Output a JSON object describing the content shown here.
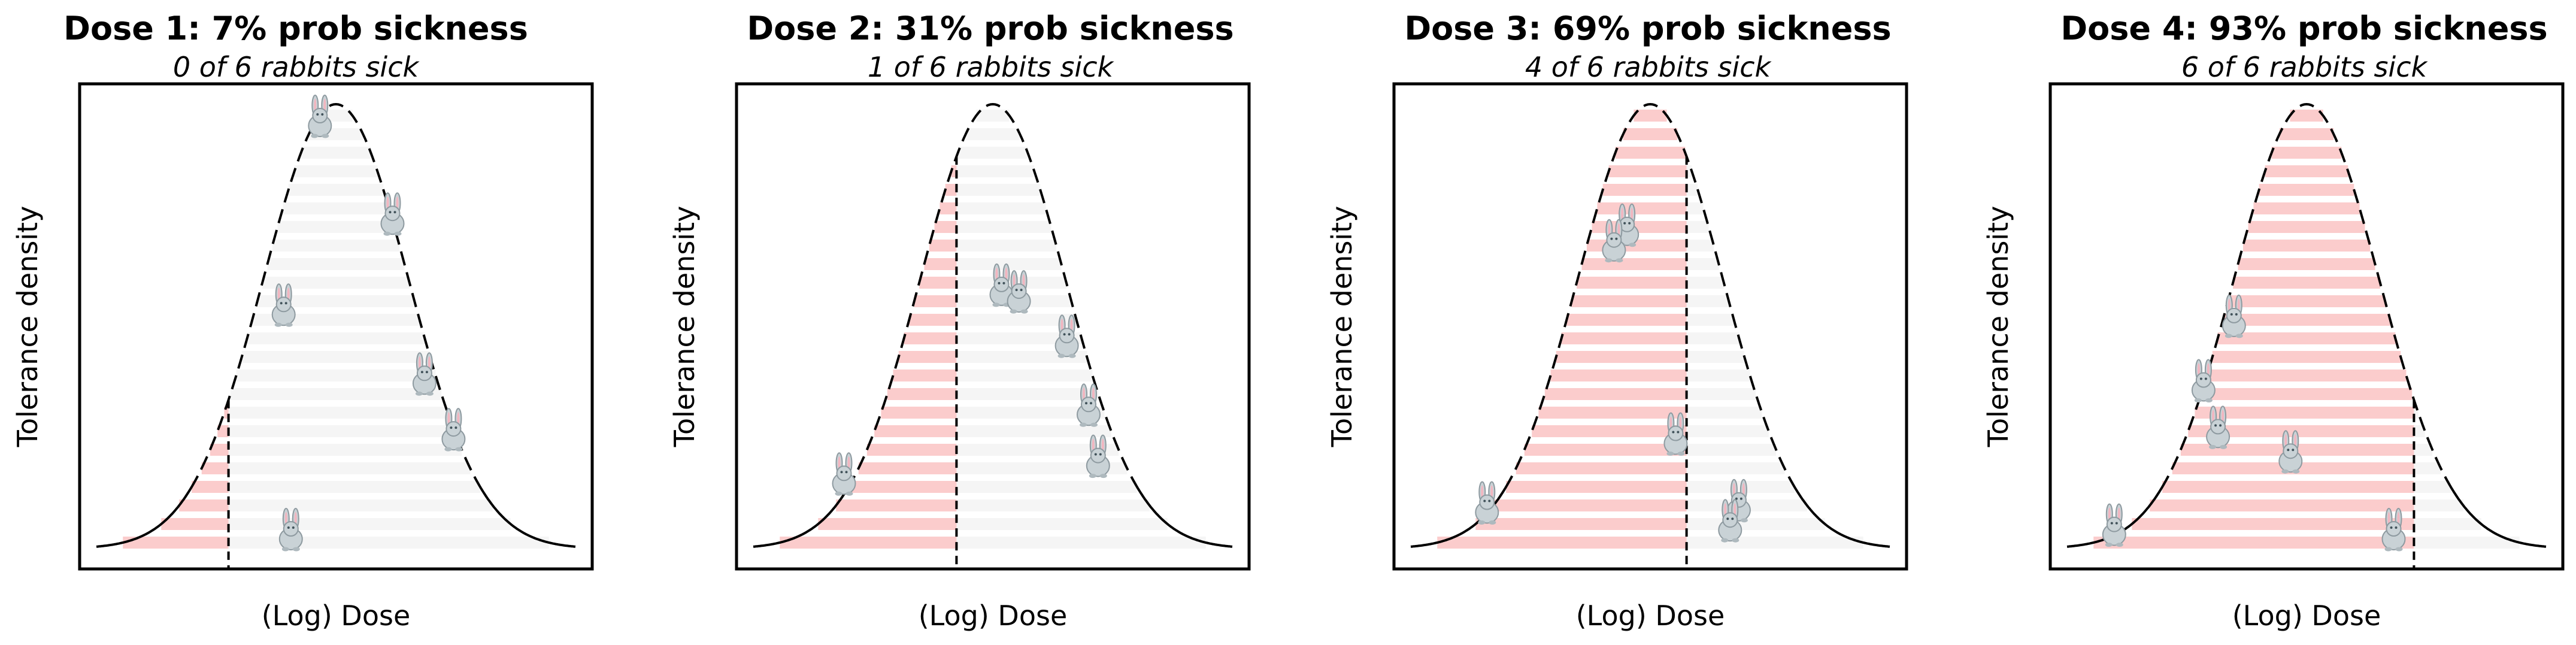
{
  "chart_data": [
    {
      "type": "area",
      "title": "Dose 1: 7% prob sickness",
      "subtitle": "0 of 6 rabbits sick",
      "xlabel": "(Log) Dose",
      "ylabel": "Tolerance density",
      "x_range": [
        -3.3,
        3.3
      ],
      "threshold_z": -1.48,
      "prob_sickness": 0.07,
      "sick": 0,
      "total": 6,
      "rabbits": [
        {
          "z": -0.22,
          "density": 0.965,
          "sick": false
        },
        {
          "z": 0.78,
          "density": 0.745,
          "sick": false
        },
        {
          "z": -0.72,
          "density": 0.54,
          "sick": false
        },
        {
          "z": 1.22,
          "density": 0.385,
          "sick": false
        },
        {
          "z": 1.62,
          "density": 0.26,
          "sick": false
        },
        {
          "z": -0.62,
          "density": 0.035,
          "sick": false
        }
      ]
    },
    {
      "type": "area",
      "title": "Dose 2: 31% prob sickness",
      "subtitle": "1 of 6 rabbits sick",
      "xlabel": "(Log) Dose",
      "ylabel": "Tolerance density",
      "x_range": [
        -3.3,
        3.3
      ],
      "threshold_z": -0.5,
      "prob_sickness": 0.31,
      "sick": 1,
      "total": 6,
      "rabbits": [
        {
          "z": 0.12,
          "density": 0.585,
          "sick": false
        },
        {
          "z": 0.36,
          "density": 0.57,
          "sick": false
        },
        {
          "z": 1.02,
          "density": 0.47,
          "sick": false
        },
        {
          "z": 1.32,
          "density": 0.315,
          "sick": false
        },
        {
          "z": 1.45,
          "density": 0.2,
          "sick": false
        },
        {
          "z": -2.05,
          "density": 0.16,
          "sick": true
        }
      ]
    },
    {
      "type": "area",
      "title": "Dose 3: 69% prob sickness",
      "subtitle": "4 of 6 rabbits sick",
      "xlabel": "(Log) Dose",
      "ylabel": "Tolerance density",
      "x_range": [
        -3.3,
        3.3
      ],
      "threshold_z": 0.5,
      "prob_sickness": 0.69,
      "sick": 4,
      "total": 6,
      "rabbits": [
        {
          "z": -0.32,
          "density": 0.72,
          "sick": true
        },
        {
          "z": -0.5,
          "density": 0.685,
          "sick": true
        },
        {
          "z": 0.35,
          "density": 0.25,
          "sick": true
        },
        {
          "z": -2.25,
          "density": 0.095,
          "sick": true
        },
        {
          "z": 1.22,
          "density": 0.1,
          "sick": false
        },
        {
          "z": 1.1,
          "density": 0.055,
          "sick": false
        }
      ]
    },
    {
      "type": "area",
      "title": "Dose 4: 93% prob sickness",
      "subtitle": "6 of 6 rabbits sick",
      "xlabel": "(Log) Dose",
      "ylabel": "Tolerance density",
      "x_range": [
        -3.3,
        3.3
      ],
      "threshold_z": 1.48,
      "prob_sickness": 0.93,
      "sick": 6,
      "total": 6,
      "rabbits": [
        {
          "z": -1.0,
          "density": 0.515,
          "sick": true
        },
        {
          "z": -1.42,
          "density": 0.37,
          "sick": true
        },
        {
          "z": -1.22,
          "density": 0.265,
          "sick": true
        },
        {
          "z": -0.22,
          "density": 0.21,
          "sick": true
        },
        {
          "z": -2.65,
          "density": 0.045,
          "sick": true
        },
        {
          "z": 1.2,
          "density": 0.035,
          "sick": true
        }
      ]
    }
  ],
  "colors": {
    "sick_fill": "#f9b8b8",
    "healthy_fill": "#d6d6d6",
    "curve": "#000000",
    "frame": "#000000",
    "rabbit_body": "#c9d2d6",
    "rabbit_outline": "#8e9aa0",
    "rabbit_ear_inner": "#f2b6c0"
  }
}
